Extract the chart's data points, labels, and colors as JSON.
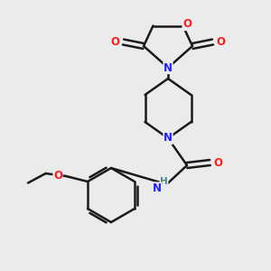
{
  "background_color": "#ebebeb",
  "bond_color": "#1a1a1a",
  "N_color": "#2020ff",
  "O_color": "#ff1a1a",
  "H_color": "#4a8888",
  "line_width": 1.8,
  "figsize": [
    3.0,
    3.0
  ],
  "dpi": 100,
  "xlim": [
    0,
    10
  ],
  "ylim": [
    0,
    10
  ]
}
